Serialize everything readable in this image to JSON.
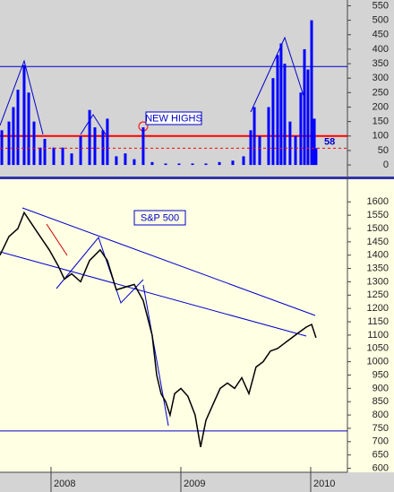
{
  "chart_data": [
    {
      "type": "bar",
      "annotation": "NEW HIGHS",
      "color": "#0000ff",
      "x": [
        2007.621,
        2007.676,
        2007.71,
        2007.745,
        2007.793,
        2007.828,
        2007.869,
        2007.917,
        2007.952,
        2008.021,
        2008.09,
        2008.159,
        2008.228,
        2008.297,
        2008.338,
        2008.4,
        2008.434,
        2008.503,
        2008.572,
        2008.641,
        2008.71,
        2008.779,
        2008.883,
        2008.986,
        2009.09,
        2009.193,
        2009.297,
        2009.4,
        2009.483,
        2009.538,
        2009.566,
        2009.607,
        2009.676,
        2009.71,
        2009.745,
        2009.772,
        2009.8,
        2009.841,
        2009.883,
        2009.924,
        2009.952,
        2009.979,
        2010.007,
        2010.028,
        2010.041
      ],
      "values": [
        120,
        150,
        200,
        260,
        345,
        250,
        150,
        60,
        90,
        60,
        60,
        40,
        100,
        190,
        130,
        120,
        160,
        30,
        40,
        20,
        130,
        10,
        5,
        5,
        5,
        5,
        10,
        15,
        30,
        120,
        200,
        100,
        200,
        300,
        380,
        420,
        350,
        150,
        100,
        250,
        400,
        330,
        500,
        160,
        58
      ],
      "xlim": [
        2007.607,
        2010.283
      ],
      "ylim": [
        -40,
        570
      ],
      "yticks": [
        0,
        50,
        100,
        150,
        200,
        250,
        300,
        350,
        400,
        450,
        500,
        550
      ],
      "hlines": [
        {
          "value": 100,
          "color": "#ff0000"
        },
        {
          "value": 340,
          "color": "#0000cc"
        }
      ]
    },
    {
      "type": "line",
      "title": "S&P 500",
      "color": "#000000",
      "x": [
        2007.607,
        2007.676,
        2007.745,
        2007.793,
        2007.848,
        2007.917,
        2007.986,
        2008.055,
        2008.103,
        2008.159,
        2008.228,
        2008.297,
        2008.379,
        2008.434,
        2008.503,
        2008.572,
        2008.641,
        2008.71,
        2008.779,
        2008.814,
        2008.848,
        2008.883,
        2008.917,
        2008.952,
        2009.0,
        2009.055,
        2009.11,
        2009.152,
        2009.193,
        2009.248,
        2009.303,
        2009.359,
        2009.414,
        2009.469,
        2009.524,
        2009.579,
        2009.634,
        2009.69,
        2009.745,
        2009.8,
        2009.855,
        2009.91,
        2009.966,
        2010.007,
        2010.041
      ],
      "values": [
        1400,
        1470,
        1500,
        1560,
        1520,
        1470,
        1420,
        1360,
        1310,
        1330,
        1300,
        1380,
        1420,
        1380,
        1270,
        1280,
        1290,
        1230,
        1100,
        950,
        880,
        850,
        800,
        880,
        900,
        870,
        800,
        680,
        780,
        840,
        900,
        920,
        900,
        940,
        880,
        980,
        1000,
        1040,
        1050,
        1070,
        1090,
        1110,
        1130,
        1140,
        1090
      ],
      "xlim": [
        2007.607,
        2010.283
      ],
      "ylim": [
        585,
        1685
      ],
      "yticks": [
        600,
        650,
        700,
        750,
        800,
        850,
        900,
        950,
        1000,
        1050,
        1100,
        1150,
        1200,
        1250,
        1300,
        1350,
        1400,
        1450,
        1500,
        1550,
        1600
      ],
      "xticks": [
        2008,
        2009,
        2010
      ],
      "hlines": [
        {
          "value": 740,
          "color": "#0000cc"
        }
      ]
    }
  ]
}
